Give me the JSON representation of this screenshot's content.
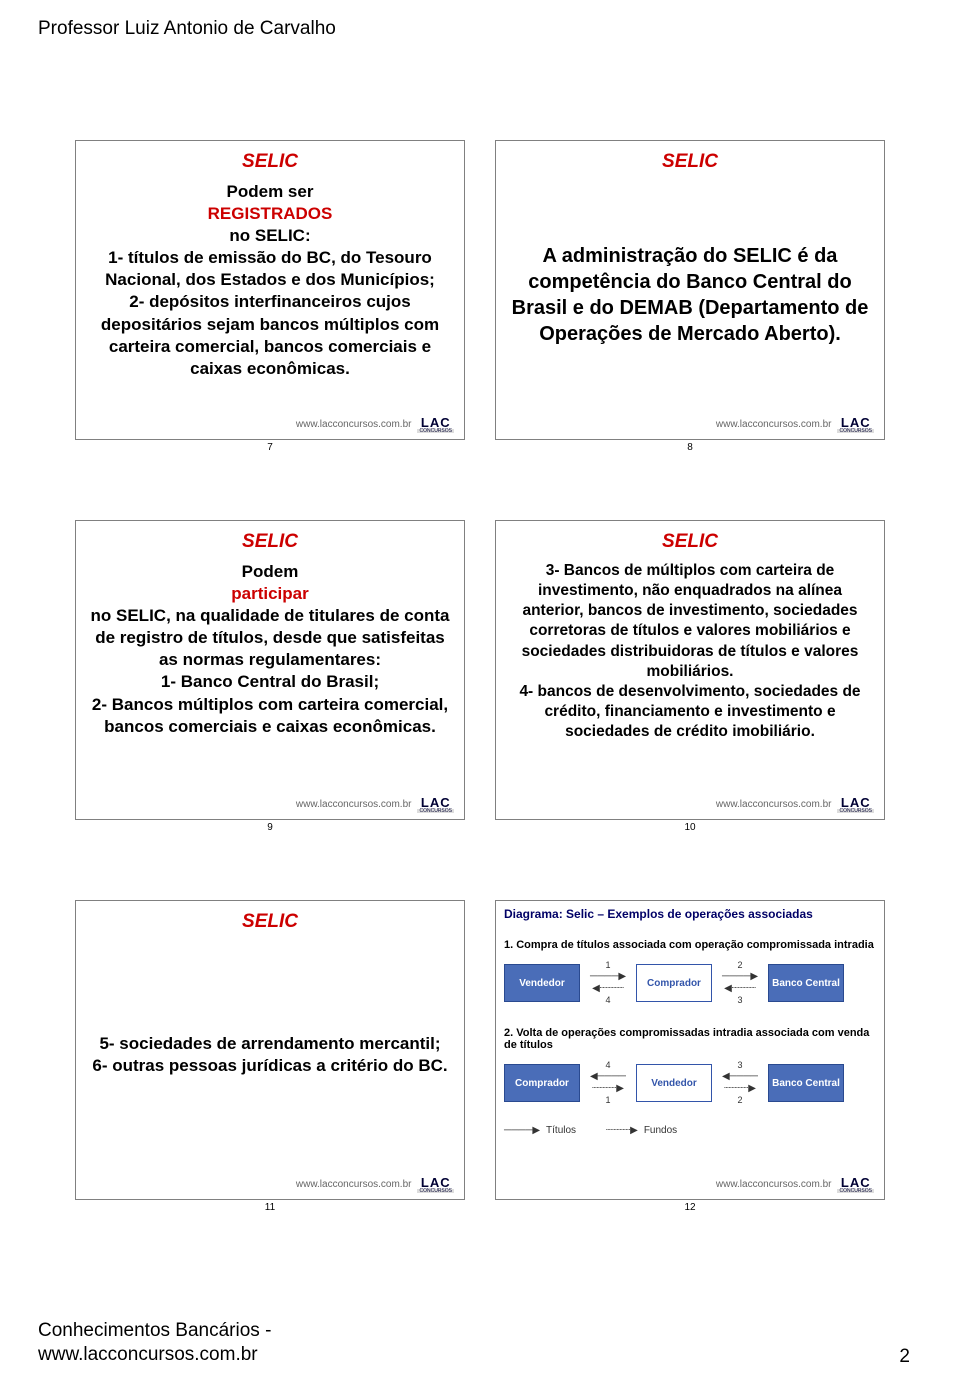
{
  "page": {
    "header": "Professor Luiz Antonio de Carvalho",
    "footer_left_1": "Conhecimentos Bancários -",
    "footer_left_2": "www.lacconcursos.com.br",
    "footer_page_num": "2"
  },
  "common": {
    "footer_url": "www.lacconcursos.com.br",
    "logo_main": "LAC",
    "logo_sub": "CONCURSOS"
  },
  "colors": {
    "title_red": "#cc0000",
    "text_black": "#000000",
    "box_blue": "#4a6db8",
    "box_border_blue": "#3355aa",
    "diagram_title_navy": "#000066",
    "border_gray": "#808080"
  },
  "slides": [
    {
      "num": "7",
      "title": "SELIC",
      "title_color": "#cc0000",
      "body_html": "Podem ser <span class=\"highlight-red\">REGISTRADOS</span> no SELIC:<br>1- títulos de emissão do BC, do Tesouro Nacional, dos Estados e dos Municípios;<br>2- depósitos interfinanceiros cujos depositários sejam bancos múltiplos com carteira comercial, bancos comerciais e caixas econômicas."
    },
    {
      "num": "8",
      "title": "SELIC",
      "title_color": "#cc0000",
      "body_html": "A administração do SELIC é da competência do Banco Central do Brasil e do DEMAB (Departamento de Operações de Mercado Aberto)."
    },
    {
      "num": "9",
      "title": "SELIC",
      "title_color": "#cc0000",
      "body_html": "Podem <span class=\"highlight-red\">participar</span> no SELIC, na qualidade  de titulares de conta de registro de títulos, desde que satisfeitas as normas regulamentares:<br>1- Banco Central do Brasil;<br>2- Bancos múltiplos com carteira comercial, bancos comerciais e caixas econômicas."
    },
    {
      "num": "10",
      "title": "SELIC",
      "title_color": "#cc0000",
      "body_html": "3-  Bancos de múltiplos com carteira de investimento, não enquadrados na alínea anterior, bancos de investimento, sociedades corretoras de títulos e valores mobiliários e sociedades distribuidoras de títulos e valores mobiliários.<br>4- bancos de desenvolvimento, sociedades de crédito, financiamento e investimento e sociedades de crédito imobiliário."
    },
    {
      "num": "11",
      "title": "SELIC",
      "title_color": "#cc0000",
      "body_html": "5- sociedades de arrendamento mercantil;<br>6- outras pessoas jurídicas a critério do BC."
    }
  ],
  "diagram": {
    "slide_num": "12",
    "title": "Diagrama: Selic – Exemplos de operações associadas",
    "section1_title": "1.  Compra de títulos associada com operação compromissada intradia",
    "section2_title": "2.  Volta de operações compromissadas intradia associada com venda de títulos",
    "row1": {
      "boxes": [
        "Vendedor",
        "Comprador",
        "Banco Central"
      ],
      "arrows_top": [
        "1",
        "2"
      ],
      "arrows_bottom": [
        "4",
        "3"
      ]
    },
    "row2": {
      "boxes": [
        "Comprador",
        "Vendedor",
        "Banco Central"
      ],
      "arrows_top": [
        "4",
        "3"
      ],
      "arrows_bottom": [
        "1",
        "2"
      ]
    },
    "legend": {
      "titulos": "Títulos",
      "fundos": "Fundos"
    }
  }
}
